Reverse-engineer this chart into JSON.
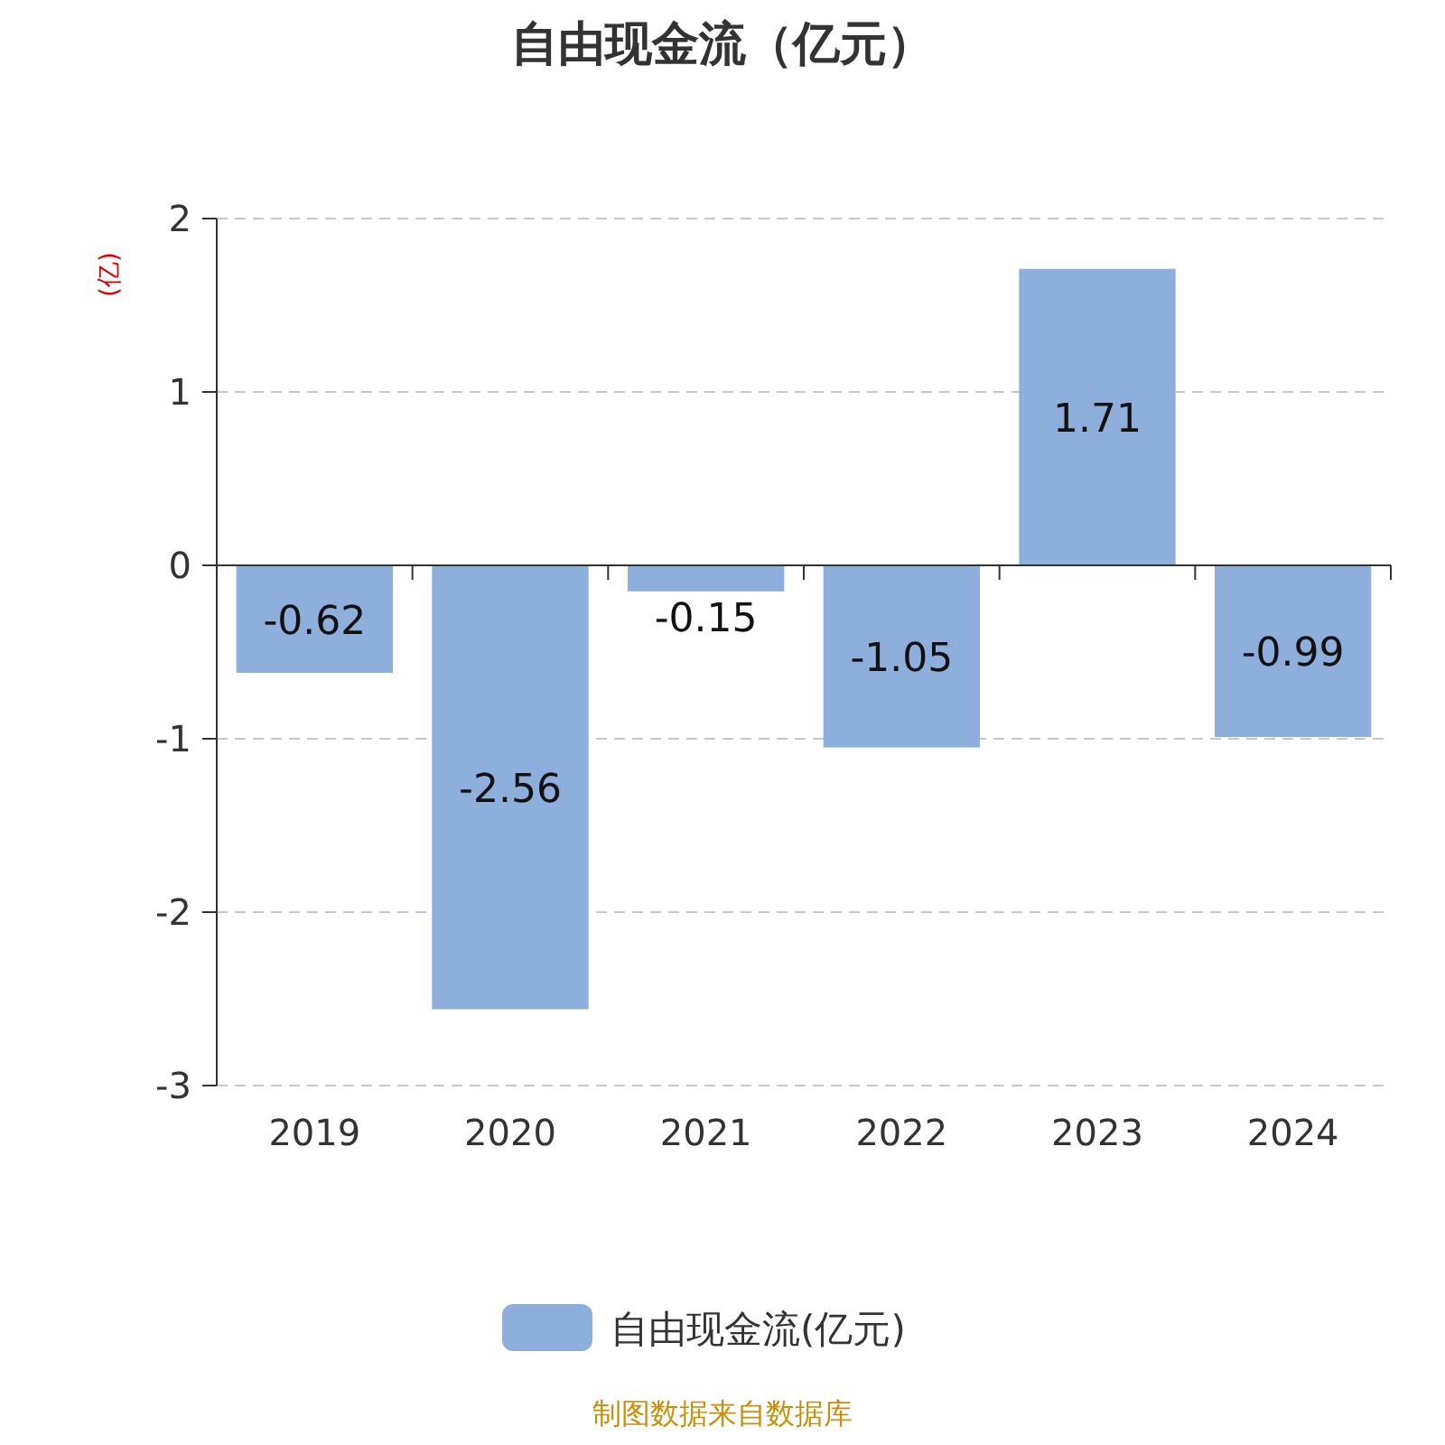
{
  "chart_data": {
    "type": "bar",
    "title": "自由现金流（亿元）",
    "ylabel": "(亿)",
    "categories": [
      "2019",
      "2020",
      "2021",
      "2022",
      "2023",
      "2024"
    ],
    "series": [
      {
        "name": "自由现金流(亿元)",
        "color": "#8eaedb",
        "values": [
          -0.62,
          -2.56,
          -0.15,
          -1.05,
          1.71,
          -0.99
        ]
      }
    ],
    "ylim": [
      -3,
      2
    ],
    "yticks": [
      -3,
      -2,
      -1,
      0,
      1,
      2
    ],
    "grid": "y",
    "legend": "bottom",
    "data_labels": true,
    "annotations": [
      "制图数据来自数据库"
    ]
  }
}
